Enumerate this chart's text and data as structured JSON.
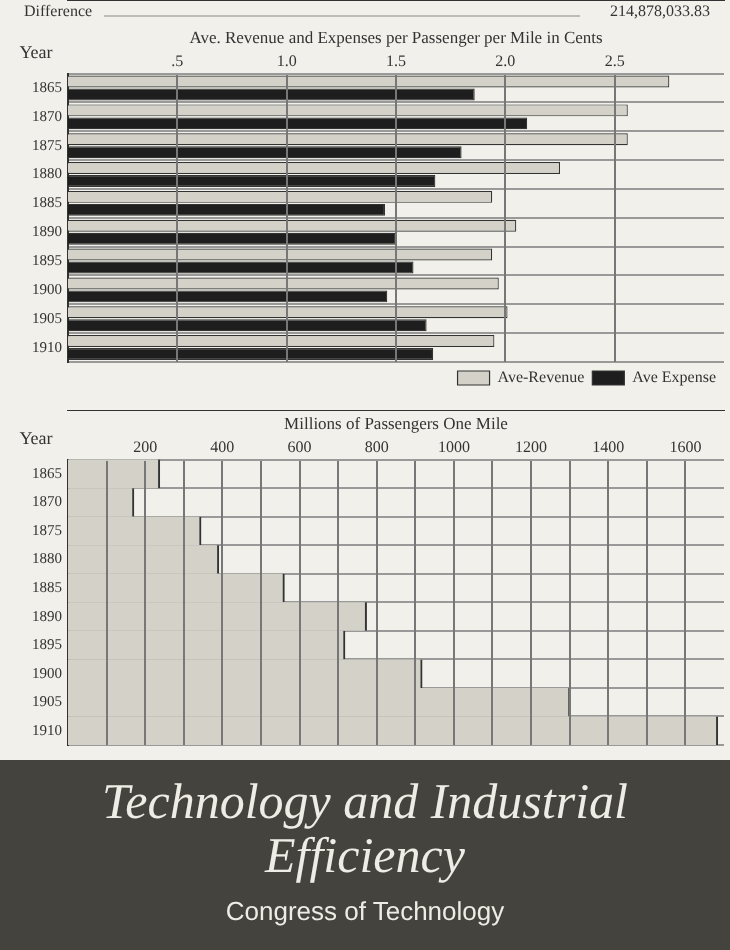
{
  "chart_data": [
    {
      "type": "bar",
      "orientation": "horizontal",
      "xlabel": "Ave. Revenue and Expenses per Passenger per Mile in Cents",
      "ylabel": "Year",
      "annotations": [
        "Difference",
        "214,878,033.83"
      ],
      "categories": [
        "1865",
        "1870",
        "1875",
        "1880",
        "1885",
        "1890",
        "1895",
        "1900",
        "1905",
        "1910"
      ],
      "series": [
        {
          "name": "Ave-Revenue",
          "color": "#d4d2c8",
          "values": [
            2.75,
            2.56,
            2.56,
            2.25,
            1.94,
            2.05,
            1.94,
            1.97,
            2.01,
            1.95
          ]
        },
        {
          "name": "Ave Expense",
          "color": "#1e1e1e",
          "values": [
            1.86,
            2.1,
            1.8,
            1.68,
            1.45,
            1.5,
            1.58,
            1.46,
            1.64,
            1.67
          ]
        }
      ],
      "xlim": [
        0,
        3
      ],
      "xticks": [
        {
          "value": 0.5,
          "label": ".5"
        },
        {
          "value": 1,
          "label": "1.0"
        },
        {
          "value": 1.5,
          "label": "1.5"
        },
        {
          "value": 2,
          "label": "2.0"
        },
        {
          "value": 2.5,
          "label": "2.5"
        }
      ],
      "grid": true,
      "legend": "bottom right"
    },
    {
      "type": "bar",
      "orientation": "horizontal",
      "xlabel": "Millions of Passengers One Mile",
      "ylabel": "Year",
      "categories": [
        "1865",
        "1870",
        "1875",
        "1880",
        "1885",
        "1890",
        "1895",
        "1900",
        "1905",
        "1910"
      ],
      "series": [
        {
          "color": "#d4d2c8",
          "values": [
            237,
            170,
            344,
            390,
            560,
            773,
            717,
            917,
            1300,
            1683
          ]
        }
      ],
      "xlim": [
        0,
        1700
      ],
      "xticks": [
        {
          "value": 100,
          "label": null
        },
        200,
        {
          "value": 300,
          "label": null
        },
        400,
        {
          "value": 500,
          "label": null
        },
        600,
        {
          "value": 700,
          "label": null
        },
        800,
        {
          "value": 900,
          "label": null
        },
        1000,
        {
          "value": 1100,
          "label": null
        },
        1200,
        {
          "value": 1300,
          "label": null
        },
        1400,
        {
          "value": 1500,
          "label": null
        },
        1600
      ],
      "grid": true
    },
    {
      "type": "other",
      "title": "Technology and Industrial Efficiency",
      "subtitle": "Congress of Technology"
    }
  ]
}
